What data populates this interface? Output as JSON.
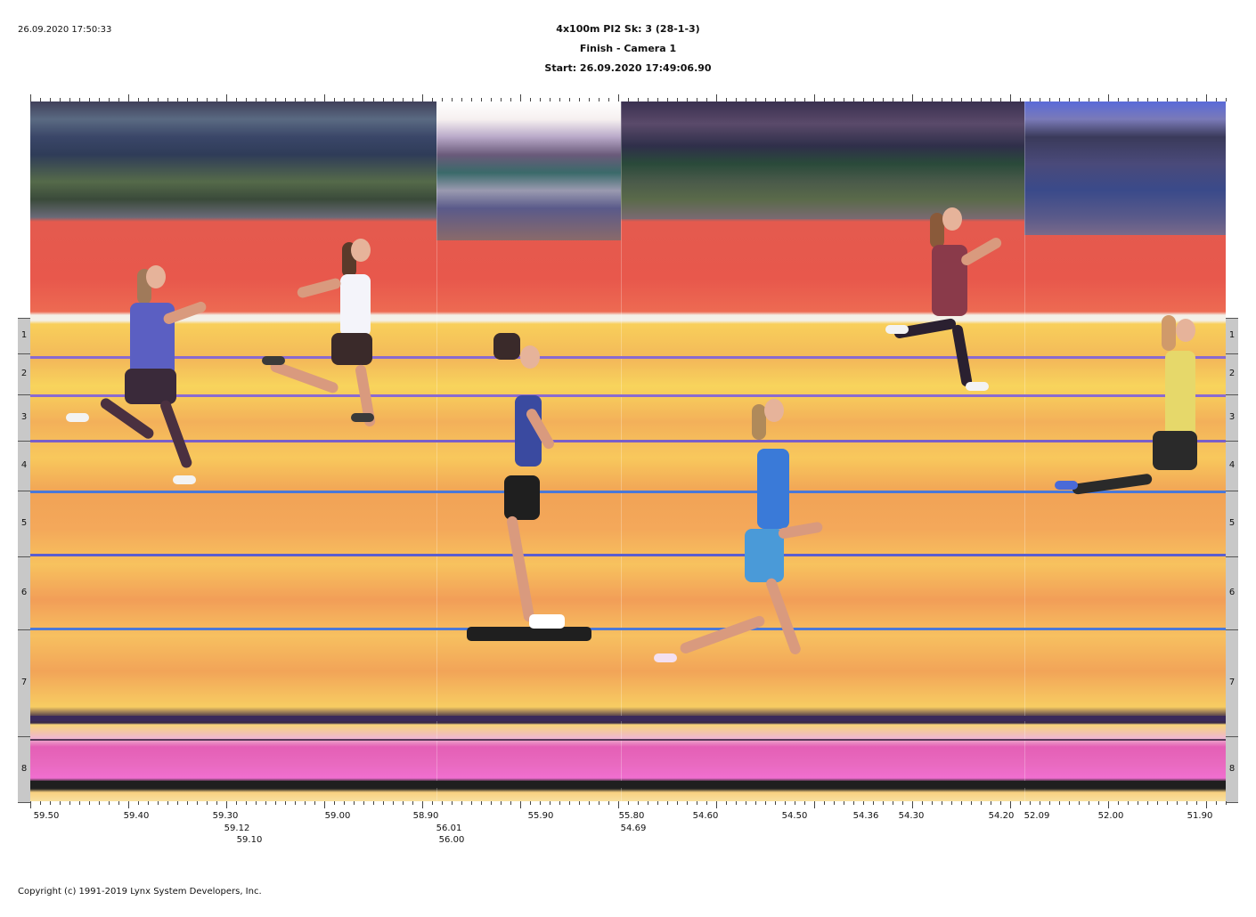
{
  "timestamp": "26.09.2020 17:50:33",
  "header": {
    "line1": "4x100m PI2   Sk: 3 (28-1-3)",
    "line2": "Finish - Camera 1",
    "line3": "Start: 26.09.2020 17:49:06.90"
  },
  "lanes": [
    "1",
    "2",
    "3",
    "4",
    "5",
    "6",
    "7",
    "8"
  ],
  "time_axis": {
    "row1": [
      "59.50",
      "59.40",
      "59.30",
      "59.00",
      "58.90",
      "56.01",
      "55.90",
      "55.80",
      "54.60",
      "54.50",
      "54.36",
      "54.30",
      "54.20",
      "52.09",
      "52.00",
      "51.90"
    ],
    "row2": [
      "59.12",
      "56.00",
      "54.69"
    ],
    "row3": [
      "59.10"
    ]
  },
  "copyright": "Copyright (c) 1991-2019 Lynx System Developers, Inc.",
  "colors": {
    "track_red": "#e8584c",
    "track_yellow": "#f8cf5a",
    "track_orange": "#f3a85a",
    "lane_blue": "#5a6fd0",
    "lane_purple": "#7a5ec8",
    "pink": "#e45fb5"
  }
}
